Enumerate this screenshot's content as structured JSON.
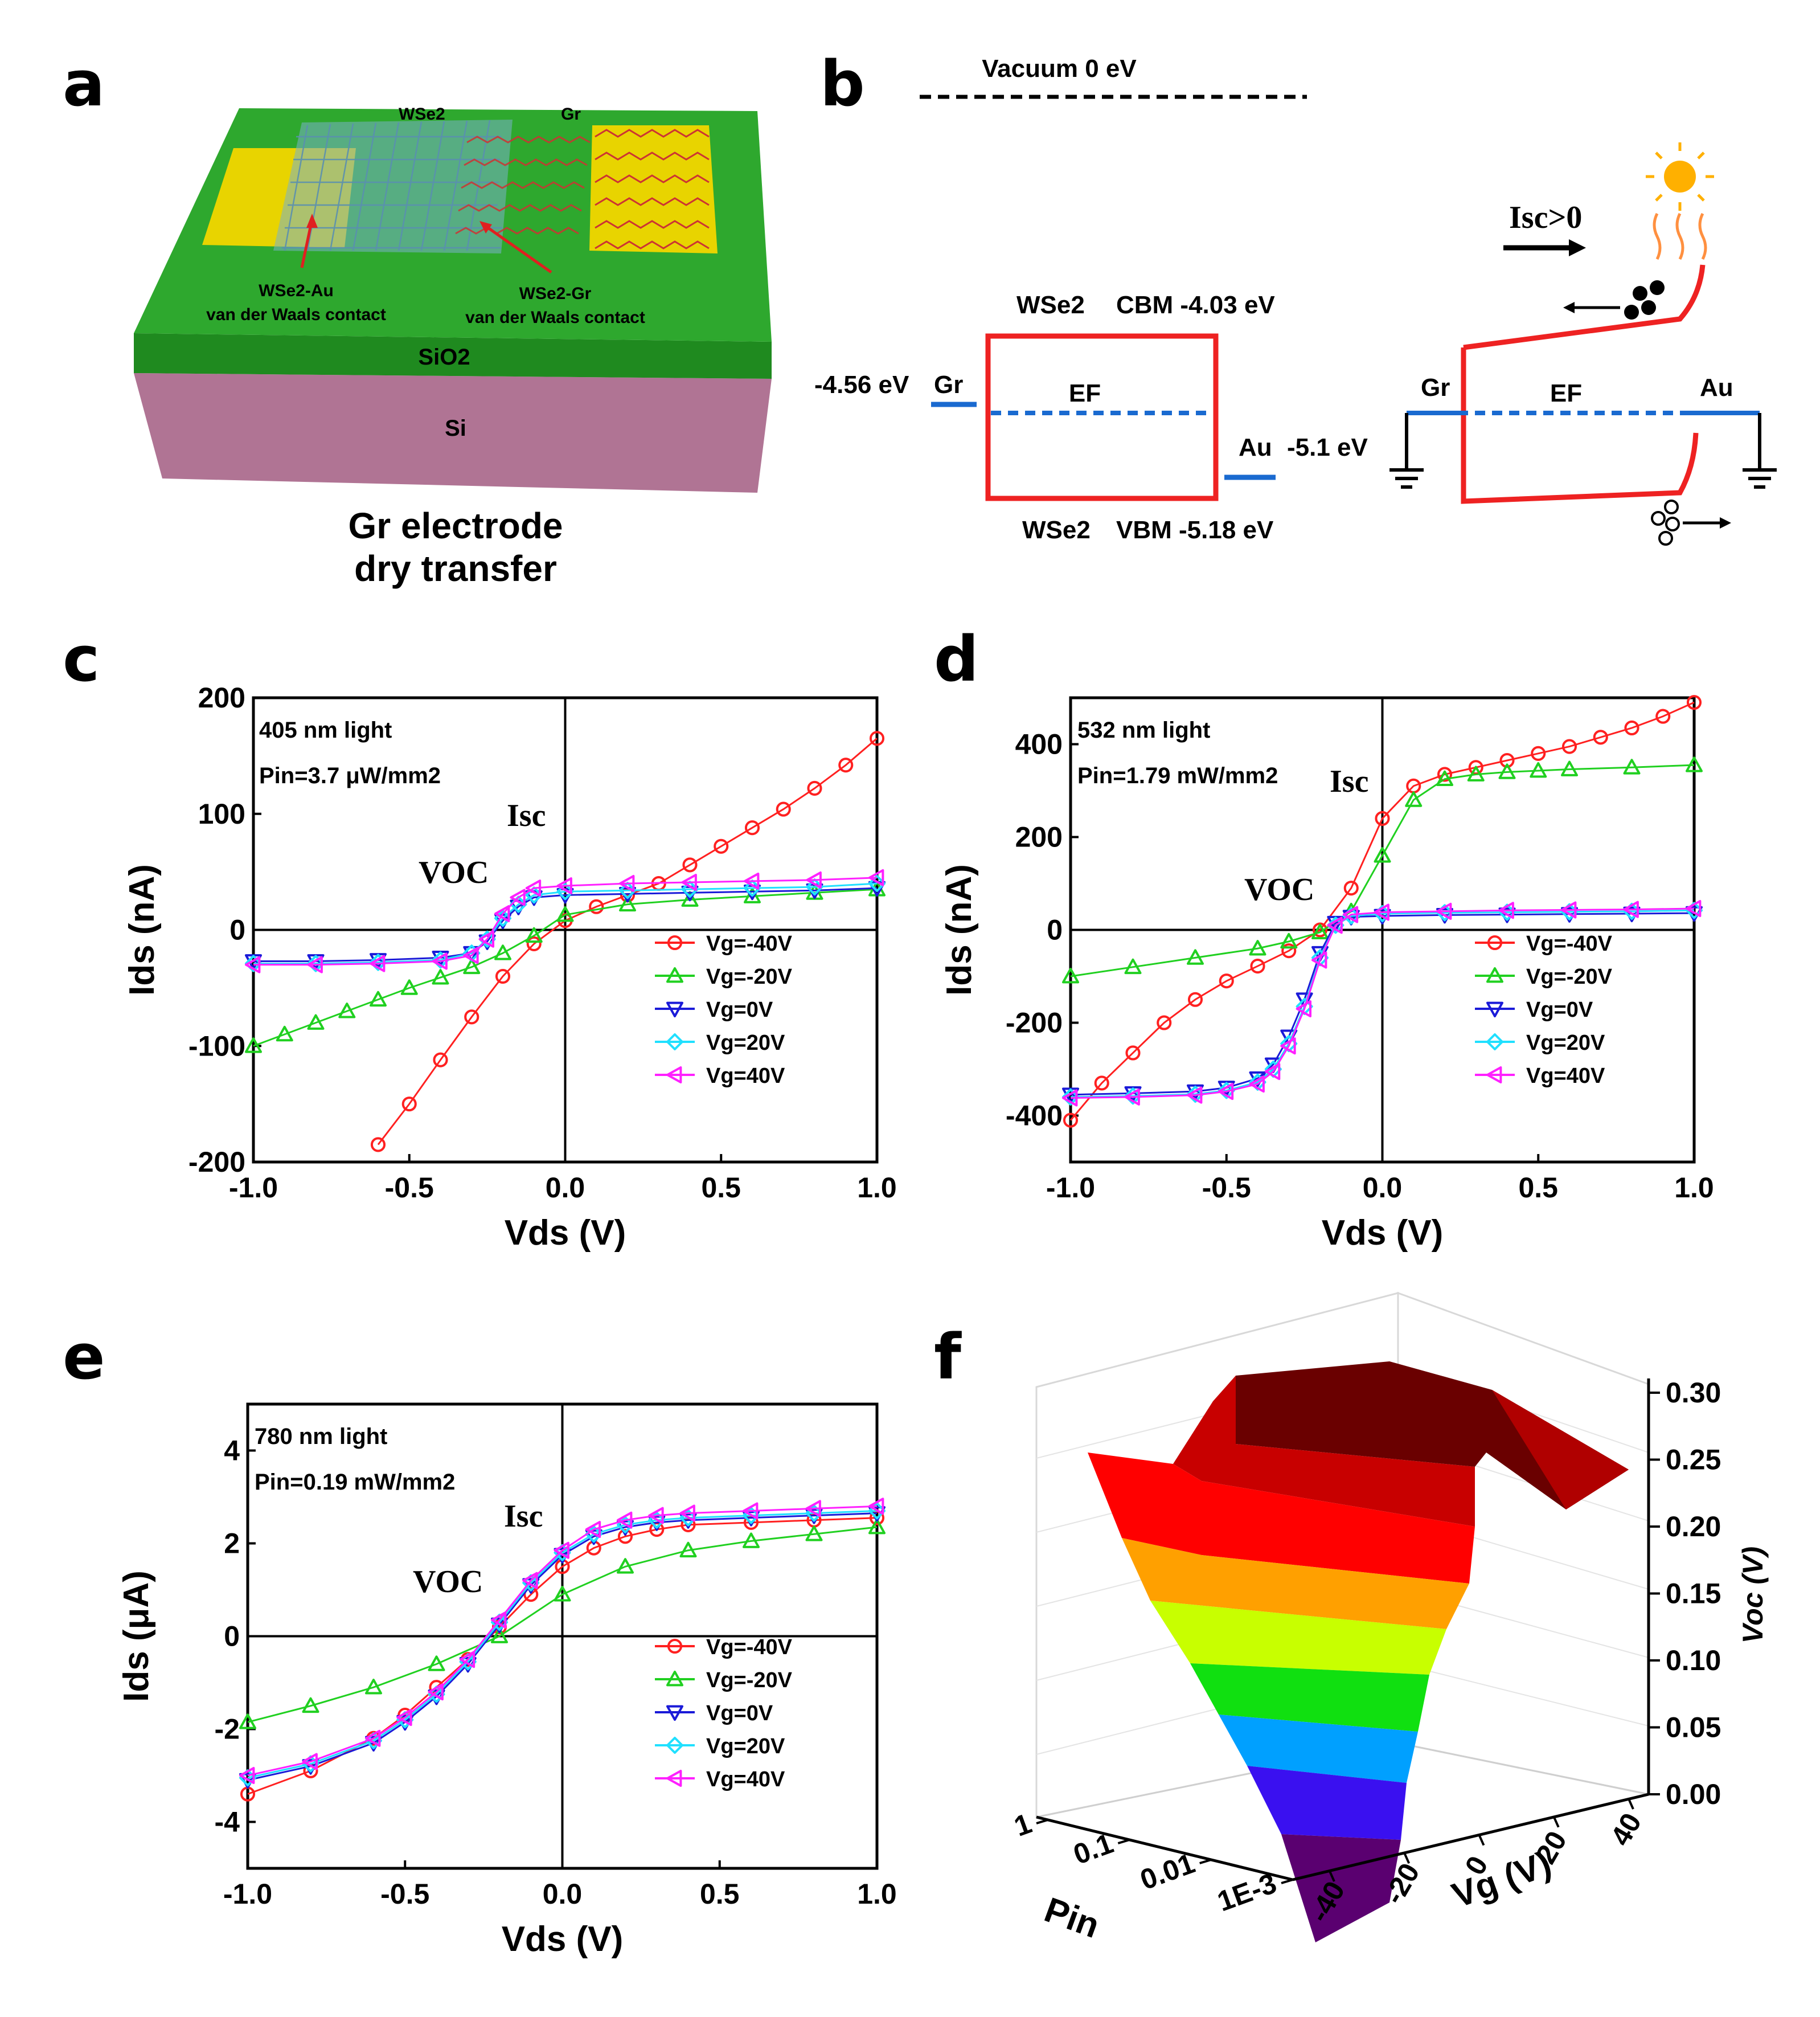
{
  "panel_labels": {
    "a": "a",
    "b": "b",
    "c": "c",
    "d": "d",
    "e": "e",
    "f": "f"
  },
  "panel_a": {
    "wse2_label": "WSe2",
    "gr_label": "Gr",
    "contact_au_line1": "WSe2-Au",
    "contact_au_line2": "van der Waals contact",
    "contact_gr_line1": "WSe2-Gr",
    "contact_gr_line2": "van der Waals contact",
    "sio2_label": "SiO2",
    "si_label": "Si",
    "caption_line1": "Gr electrode",
    "caption_line2": "dry transfer",
    "colors": {
      "green": "#2ea82e",
      "si": "#b07090",
      "gold": "#e8d400",
      "flake": "#7ab0c8",
      "graphene": "#cc3333"
    }
  },
  "panel_b": {
    "vacuum": "Vacuum 0 eV",
    "wse2_cbm_prefix": "WSe2",
    "cbm": "CBM -4.03 eV",
    "wse2_vbm_prefix": "WSe2",
    "vbm": "VBM -5.18 eV",
    "gr_energy": "-4.56 eV",
    "gr": "Gr",
    "ef": "EF",
    "au": "Au",
    "au_energy": "-5.1 eV",
    "gr_right": "Gr",
    "ef_right": "EF",
    "au_right": "Au",
    "isc_label": "Isc>0"
  },
  "chart_data": [
    {
      "panel": "c",
      "type": "scatter",
      "note_line1": "405 nm light",
      "note_line2": "Pin=3.7 μW/mm2",
      "isc_label": "Isc",
      "voc_label": "VOC",
      "xlabel": "Vds (V)",
      "ylabel": "Ids (nA)",
      "xlim": [
        -1.0,
        1.0
      ],
      "ylim": [
        -200,
        200
      ],
      "xticks": [
        "-1.0",
        "-0.5",
        "0.0",
        "0.5",
        "1.0"
      ],
      "yticks": [
        "-200",
        "-100",
        "0",
        "100",
        "200"
      ],
      "series": [
        {
          "name": "Vg=-40V",
          "color": "#ff2020",
          "marker": "circle",
          "x": [
            -0.6,
            -0.5,
            -0.4,
            -0.3,
            -0.2,
            -0.1,
            0.0,
            0.1,
            0.2,
            0.3,
            0.4,
            0.5,
            0.6,
            0.7,
            0.8,
            0.9,
            1.0
          ],
          "y": [
            -185,
            -150,
            -112,
            -75,
            -40,
            -12,
            8,
            20,
            30,
            40,
            56,
            72,
            88,
            104,
            122,
            142,
            165
          ]
        },
        {
          "name": "Vg=-20V",
          "color": "#20d020",
          "marker": "triangle-up",
          "x": [
            -1.0,
            -0.9,
            -0.8,
            -0.7,
            -0.6,
            -0.5,
            -0.4,
            -0.3,
            -0.2,
            -0.1,
            0.0,
            0.2,
            0.4,
            0.6,
            0.8,
            1.0
          ],
          "y": [
            -100,
            -90,
            -80,
            -70,
            -60,
            -50,
            -41,
            -32,
            -20,
            -5,
            13,
            22,
            26,
            29,
            32,
            35
          ]
        },
        {
          "name": "Vg=0V",
          "color": "#1a1ad8",
          "marker": "triangle-down",
          "x": [
            -1.0,
            -0.8,
            -0.6,
            -0.4,
            -0.3,
            -0.25,
            -0.2,
            -0.15,
            -0.1,
            0.0,
            0.2,
            0.4,
            0.6,
            0.8,
            1.0
          ],
          "y": [
            -27,
            -27,
            -26,
            -24,
            -20,
            -10,
            8,
            20,
            28,
            30,
            31,
            32,
            33,
            34,
            36
          ]
        },
        {
          "name": "Vg=20V",
          "color": "#20e0ff",
          "marker": "diamond",
          "x": [
            -1.0,
            -0.8,
            -0.6,
            -0.4,
            -0.3,
            -0.25,
            -0.2,
            -0.15,
            -0.1,
            0.0,
            0.2,
            0.4,
            0.6,
            0.8,
            1.0
          ],
          "y": [
            -29,
            -29,
            -28,
            -26,
            -20,
            -8,
            10,
            22,
            30,
            33,
            34,
            35,
            36,
            37,
            40
          ]
        },
        {
          "name": "Vg=40V",
          "color": "#ff20ff",
          "marker": "triangle-left",
          "x": [
            -1.0,
            -0.8,
            -0.6,
            -0.4,
            -0.3,
            -0.25,
            -0.2,
            -0.15,
            -0.1,
            0.0,
            0.2,
            0.4,
            0.6,
            0.8,
            1.0
          ],
          "y": [
            -30,
            -30,
            -29,
            -27,
            -22,
            -8,
            14,
            28,
            36,
            38,
            40,
            41,
            42,
            43,
            45
          ]
        }
      ]
    },
    {
      "panel": "d",
      "type": "scatter",
      "note_line1": "532 nm light",
      "note_line2": "Pin=1.79 mW/mm2",
      "isc_label": "Isc",
      "voc_label": "VOC",
      "xlabel": "Vds (V)",
      "ylabel": "Ids (nA)",
      "xlim": [
        -1.0,
        1.0
      ],
      "ylim": [
        -500,
        500
      ],
      "xticks": [
        "-1.0",
        "-0.5",
        "0.0",
        "0.5",
        "1.0"
      ],
      "yticks": [
        "-400",
        "-200",
        "0",
        "200",
        "400"
      ],
      "series": [
        {
          "name": "Vg=-40V",
          "color": "#ff2020",
          "marker": "circle",
          "x": [
            -1.0,
            -0.9,
            -0.8,
            -0.7,
            -0.6,
            -0.5,
            -0.4,
            -0.3,
            -0.2,
            -0.1,
            0.0,
            0.1,
            0.2,
            0.3,
            0.4,
            0.5,
            0.6,
            0.7,
            0.8,
            0.9,
            1.0
          ],
          "y": [
            -410,
            -330,
            -265,
            -200,
            -150,
            -110,
            -78,
            -45,
            0,
            90,
            240,
            310,
            335,
            350,
            365,
            380,
            395,
            415,
            435,
            460,
            490
          ]
        },
        {
          "name": "Vg=-20V",
          "color": "#20d020",
          "marker": "triangle-up",
          "x": [
            -1.0,
            -0.8,
            -0.6,
            -0.4,
            -0.3,
            -0.2,
            -0.1,
            0.0,
            0.1,
            0.2,
            0.3,
            0.4,
            0.5,
            0.6,
            0.8,
            1.0
          ],
          "y": [
            -100,
            -80,
            -60,
            -40,
            -25,
            -5,
            40,
            160,
            280,
            325,
            335,
            340,
            343,
            346,
            350,
            355
          ]
        },
        {
          "name": "Vg=0V",
          "color": "#1a1ad8",
          "marker": "triangle-down",
          "x": [
            -1.0,
            -0.8,
            -0.6,
            -0.5,
            -0.4,
            -0.35,
            -0.3,
            -0.25,
            -0.2,
            -0.15,
            -0.1,
            0.0,
            0.2,
            0.4,
            0.6,
            0.8,
            1.0
          ],
          "y": [
            -355,
            -352,
            -348,
            -340,
            -320,
            -290,
            -230,
            -150,
            -50,
            15,
            28,
            30,
            32,
            33,
            34,
            35,
            36
          ]
        },
        {
          "name": "Vg=20V",
          "color": "#20e0ff",
          "marker": "diamond",
          "x": [
            -1.0,
            -0.8,
            -0.6,
            -0.5,
            -0.4,
            -0.35,
            -0.3,
            -0.25,
            -0.2,
            -0.15,
            -0.1,
            0.0,
            0.2,
            0.4,
            0.6,
            0.8,
            1.0
          ],
          "y": [
            -360,
            -358,
            -354,
            -346,
            -328,
            -300,
            -245,
            -165,
            -60,
            10,
            30,
            35,
            37,
            38,
            39,
            40,
            42
          ]
        },
        {
          "name": "Vg=40V",
          "color": "#ff20ff",
          "marker": "triangle-left",
          "x": [
            -1.0,
            -0.8,
            -0.6,
            -0.5,
            -0.4,
            -0.35,
            -0.3,
            -0.25,
            -0.2,
            -0.15,
            -0.1,
            0.0,
            0.2,
            0.4,
            0.6,
            0.8,
            1.0
          ],
          "y": [
            -362,
            -360,
            -356,
            -348,
            -332,
            -305,
            -250,
            -170,
            -65,
            10,
            33,
            38,
            40,
            42,
            43,
            44,
            46
          ]
        }
      ]
    },
    {
      "panel": "e",
      "type": "scatter",
      "note_line1": "780 nm light",
      "note_line2": "Pin=0.19 mW/mm2",
      "isc_label": "Isc",
      "voc_label": "VOC",
      "xlabel": "Vds (V)",
      "ylabel": "Ids (μA)",
      "xlim": [
        -1.0,
        1.0
      ],
      "ylim": [
        -5,
        5
      ],
      "xticks": [
        "-1.0",
        "-0.5",
        "0.0",
        "0.5",
        "1.0"
      ],
      "yticks": [
        "-4",
        "-2",
        "0",
        "2",
        "4"
      ],
      "series": [
        {
          "name": "Vg=-40V",
          "color": "#ff2020",
          "marker": "circle",
          "x": [
            -1.0,
            -0.8,
            -0.6,
            -0.5,
            -0.4,
            -0.3,
            -0.2,
            -0.1,
            0.0,
            0.1,
            0.2,
            0.3,
            0.4,
            0.6,
            0.8,
            1.0
          ],
          "y": [
            -3.4,
            -2.9,
            -2.2,
            -1.7,
            -1.1,
            -0.5,
            0.2,
            0.9,
            1.5,
            1.9,
            2.15,
            2.3,
            2.4,
            2.45,
            2.5,
            2.55
          ]
        },
        {
          "name": "Vg=-20V",
          "color": "#20d020",
          "marker": "triangle-up",
          "x": [
            -1.0,
            -0.8,
            -0.6,
            -0.4,
            -0.2,
            0.0,
            0.2,
            0.4,
            0.6,
            0.8,
            1.0
          ],
          "y": [
            -1.85,
            -1.5,
            -1.1,
            -0.6,
            0.0,
            0.9,
            1.5,
            1.85,
            2.05,
            2.2,
            2.35
          ]
        },
        {
          "name": "Vg=0V",
          "color": "#1a1ad8",
          "marker": "triangle-down",
          "x": [
            -1.0,
            -0.8,
            -0.6,
            -0.5,
            -0.4,
            -0.3,
            -0.2,
            -0.1,
            0.0,
            0.1,
            0.2,
            0.3,
            0.4,
            0.6,
            0.8,
            1.0
          ],
          "y": [
            -3.1,
            -2.8,
            -2.3,
            -1.85,
            -1.3,
            -0.6,
            0.25,
            1.1,
            1.75,
            2.15,
            2.35,
            2.45,
            2.5,
            2.55,
            2.6,
            2.65
          ]
        },
        {
          "name": "Vg=20V",
          "color": "#20e0ff",
          "marker": "diamond",
          "x": [
            -1.0,
            -0.8,
            -0.6,
            -0.5,
            -0.4,
            -0.3,
            -0.2,
            -0.1,
            0.0,
            0.1,
            0.2,
            0.3,
            0.4,
            0.6,
            0.8,
            1.0
          ],
          "y": [
            -3.05,
            -2.75,
            -2.25,
            -1.8,
            -1.25,
            -0.55,
            0.3,
            1.15,
            1.8,
            2.2,
            2.4,
            2.5,
            2.55,
            2.6,
            2.65,
            2.7
          ]
        },
        {
          "name": "Vg=40V",
          "color": "#ff20ff",
          "marker": "triangle-left",
          "x": [
            -1.0,
            -0.8,
            -0.6,
            -0.5,
            -0.4,
            -0.3,
            -0.2,
            -0.1,
            0.0,
            0.1,
            0.2,
            0.3,
            0.4,
            0.6,
            0.8,
            1.0
          ],
          "y": [
            -3.0,
            -2.7,
            -2.2,
            -1.75,
            -1.2,
            -0.5,
            0.35,
            1.2,
            1.85,
            2.3,
            2.5,
            2.6,
            2.65,
            2.7,
            2.75,
            2.8
          ]
        }
      ]
    },
    {
      "panel": "f",
      "type": "surface3d",
      "zlabel": "Voc (V)",
      "xlabel": "Vg (V)",
      "ylabel": "Pin",
      "zticks": [
        "0.00",
        "0.05",
        "0.10",
        "0.15",
        "0.20",
        "0.25",
        "0.30"
      ],
      "vg_ticks": [
        "-40",
        "-20",
        "0",
        "20",
        "40"
      ],
      "pin_ticks": [
        "1E-3",
        "0.01",
        "0.1",
        "1"
      ],
      "colorbands": [
        "#5a0070",
        "#3a10f0",
        "#00a0ff",
        "#10e010",
        "#c8ff00",
        "#ffa000",
        "#ff0000",
        "#c80000",
        "#6a0000"
      ]
    }
  ]
}
